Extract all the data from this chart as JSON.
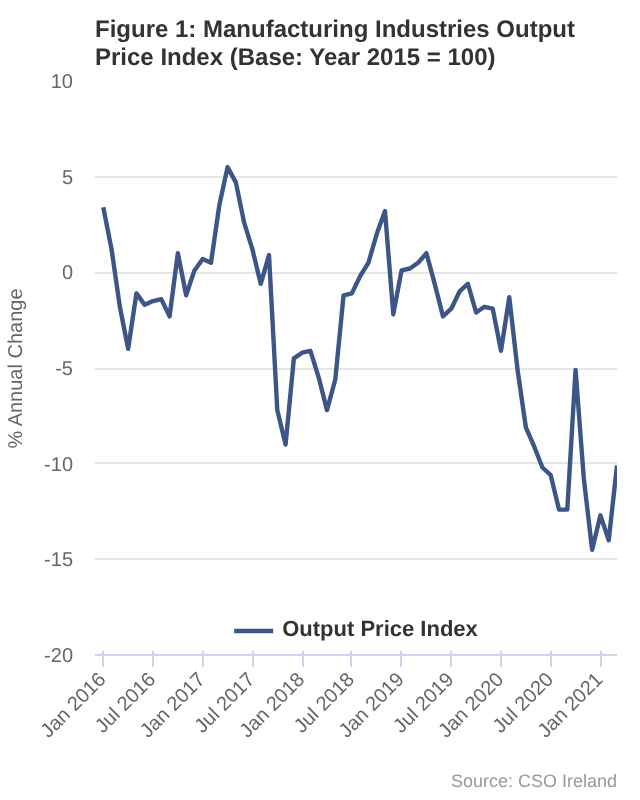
{
  "chart_data": {
    "type": "line",
    "title": "Figure 1: Manufacturing Industries Output Price Index (Base: Year 2015 = 100)",
    "ylabel": "% Annual Change",
    "x": [
      "2016-01",
      "2016-02",
      "2016-03",
      "2016-04",
      "2016-05",
      "2016-06",
      "2016-07",
      "2016-08",
      "2016-09",
      "2016-10",
      "2016-11",
      "2016-12",
      "2017-01",
      "2017-02",
      "2017-03",
      "2017-04",
      "2017-05",
      "2017-06",
      "2017-07",
      "2017-08",
      "2017-09",
      "2017-10",
      "2017-11",
      "2017-12",
      "2018-01",
      "2018-02",
      "2018-03",
      "2018-04",
      "2018-05",
      "2018-06",
      "2018-07",
      "2018-08",
      "2018-09",
      "2018-10",
      "2018-11",
      "2018-12",
      "2019-01",
      "2019-02",
      "2019-03",
      "2019-04",
      "2019-05",
      "2019-06",
      "2019-07",
      "2019-08",
      "2019-09",
      "2019-10",
      "2019-11",
      "2019-12",
      "2020-01",
      "2020-02",
      "2020-03",
      "2020-04",
      "2020-05",
      "2020-06",
      "2020-07",
      "2020-08",
      "2020-09",
      "2020-10",
      "2020-11",
      "2020-12",
      "2021-01",
      "2021-02",
      "2021-03"
    ],
    "series": [
      {
        "name": "Output Price Index",
        "color": "#3d5587",
        "values": [
          3.4,
          1.2,
          -1.8,
          -4.0,
          -1.1,
          -1.7,
          -1.5,
          -1.4,
          -2.3,
          1.0,
          -1.2,
          0.1,
          0.7,
          0.5,
          3.5,
          5.5,
          4.7,
          2.6,
          1.2,
          -0.6,
          0.9,
          -7.2,
          -9.0,
          -4.5,
          -4.2,
          -4.1,
          -5.5,
          -7.2,
          -5.6,
          -1.2,
          -1.1,
          -0.2,
          0.5,
          2.0,
          3.2,
          -2.2,
          0.1,
          0.2,
          0.5,
          1.0,
          -0.6,
          -2.3,
          -1.9,
          -1.0,
          -0.6,
          -2.1,
          -1.8,
          -1.9,
          -4.1,
          -1.3,
          -5.1,
          -8.1,
          -9.1,
          -10.2,
          -10.6,
          -12.4,
          -12.4,
          -5.1,
          -10.8,
          -14.5,
          -12.7,
          -14.0,
          -10.1
        ]
      }
    ],
    "xlim": [
      "2015-12",
      "2021-03"
    ],
    "xticks": [
      {
        "value": "2016-01",
        "label": "Jan 2016"
      },
      {
        "value": "2016-07",
        "label": "Jul 2016"
      },
      {
        "value": "2017-01",
        "label": "Jan 2017"
      },
      {
        "value": "2017-07",
        "label": "Jul 2017"
      },
      {
        "value": "2018-01",
        "label": "Jan 2018"
      },
      {
        "value": "2018-07",
        "label": "Jul 2018"
      },
      {
        "value": "2019-01",
        "label": "Jan 2019"
      },
      {
        "value": "2019-07",
        "label": "Jul 2019"
      },
      {
        "value": "2020-01",
        "label": "Jan 2020"
      },
      {
        "value": "2020-07",
        "label": "Jul 2020"
      },
      {
        "value": "2021-01",
        "label": "Jan 2021"
      }
    ],
    "ylim": [
      -20,
      10
    ],
    "yticks": [
      -20,
      -15,
      -10,
      -5,
      0,
      5,
      10
    ],
    "grid": "y",
    "legend": "bottom",
    "line_style": "solid",
    "annotations": [
      "Source: CSO Ireland"
    ]
  }
}
